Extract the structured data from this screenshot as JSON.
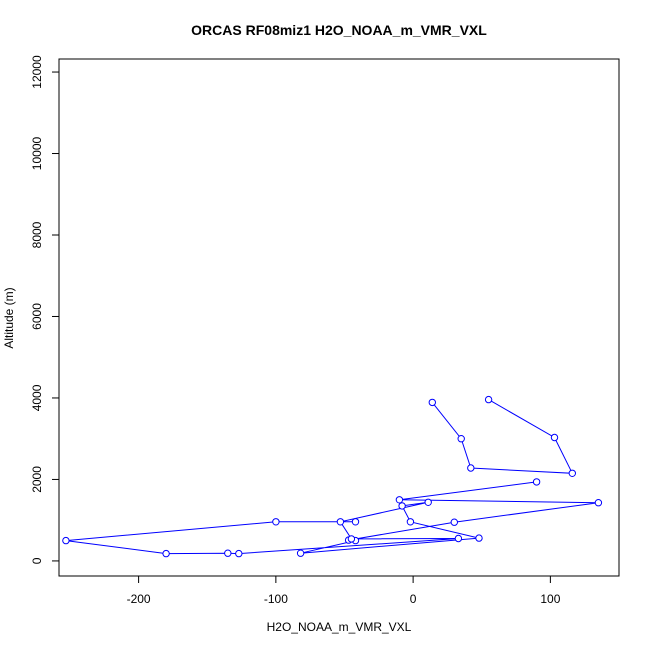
{
  "chart_data": {
    "type": "line",
    "title": "ORCAS RF08miz1 H2O_NOAA_m_VMR_VXL",
    "xlabel": "H2O_NOAA_m_VMR_VXL",
    "ylabel": "Altitude (m)",
    "xlim": [
      -258,
      150
    ],
    "ylim": [
      -370,
      12320
    ],
    "x_ticks": [
      -200,
      -100,
      0,
      100
    ],
    "y_ticks": [
      0,
      2000,
      4000,
      6000,
      8000,
      10000,
      12000
    ],
    "x_tick_labels": [
      "-200",
      "-100",
      "0",
      "100"
    ],
    "y_tick_labels": [
      "0",
      "2000",
      "4000",
      "6000",
      "8000",
      "10000",
      "12000"
    ],
    "grid": false,
    "line_color": "#0000ff",
    "marker": "open-circle",
    "series": [
      {
        "x": [
          55,
          103,
          116,
          42,
          35,
          14,
          null,
          90,
          -10,
          135,
          30,
          -47,
          -42,
          -82,
          48,
          -2,
          -8,
          11,
          -53,
          -45,
          33,
          -127,
          -135,
          -180,
          -253,
          -100,
          -42
        ],
        "y": [
          3960,
          3030,
          2150,
          2280,
          3000,
          3890,
          null,
          1940,
          1500,
          1430,
          950,
          510,
          500,
          190,
          560,
          960,
          1350,
          1440,
          960,
          540,
          550,
          180,
          190,
          180,
          500,
          960,
          960
        ]
      }
    ]
  }
}
